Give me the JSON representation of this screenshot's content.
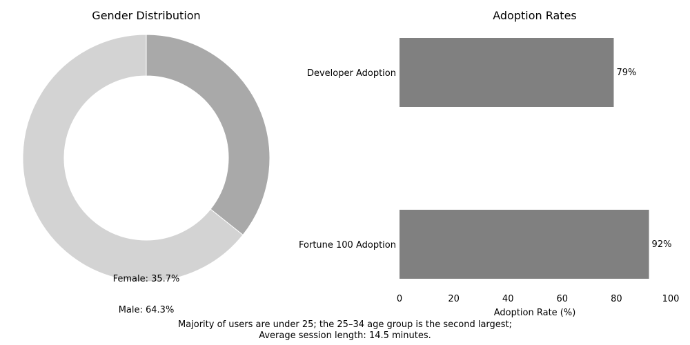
{
  "chart_data": [
    {
      "type": "pie",
      "title": "Gender Distribution",
      "donut": true,
      "slices": [
        {
          "label": "Female",
          "value": 35.7,
          "display": "Female: 35.7%",
          "color": "#a9a9a9"
        },
        {
          "label": "Male",
          "value": 64.3,
          "display": "Male: 64.3%",
          "color": "#d3d3d3"
        }
      ]
    },
    {
      "type": "bar",
      "orientation": "horizontal",
      "title": "Adoption Rates",
      "categories": [
        "Developer Adoption",
        "Fortune 100 Adoption"
      ],
      "values": [
        79,
        92
      ],
      "value_labels": [
        "79%",
        "92%"
      ],
      "xlabel": "Adoption Rate (%)",
      "ylabel": "",
      "xlim": [
        0,
        100
      ],
      "xticks": [
        0,
        20,
        40,
        60,
        80,
        100
      ],
      "bar_color": "#808080",
      "grid": false
    }
  ],
  "footnote": {
    "line1": "Majority of users are under 25; the 25–34 age group is the second largest;",
    "line2": "Average session length: 14.5 minutes."
  }
}
